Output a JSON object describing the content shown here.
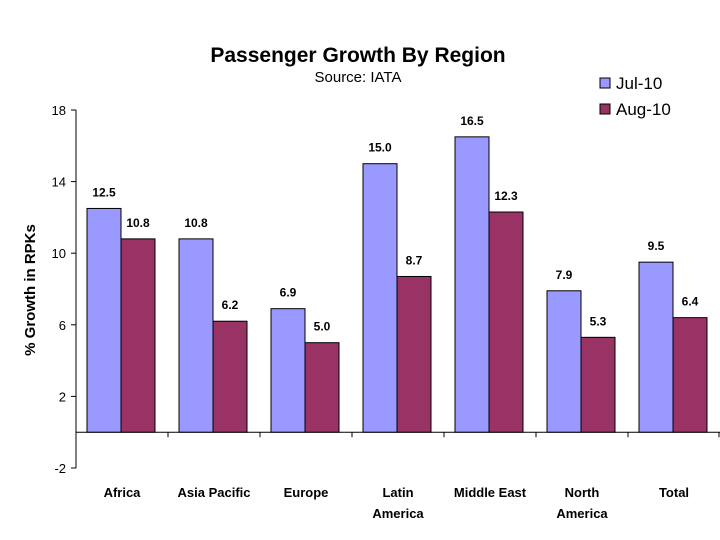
{
  "chart_data": {
    "type": "bar",
    "title": "Passenger Growth By Region",
    "subtitle": "Source: IATA",
    "ylabel": "% Growth in RPKs",
    "xlabel": "",
    "ylim": [
      -2,
      18
    ],
    "yticks": [
      "-2",
      "2",
      "6",
      "10",
      "14",
      "18"
    ],
    "legend_position": "top-right",
    "categories": [
      [
        "Africa"
      ],
      [
        "Asia Pacific"
      ],
      [
        "Europe"
      ],
      [
        "Latin",
        "America"
      ],
      [
        "Middle East"
      ],
      [
        "North",
        "America"
      ],
      [
        "Total"
      ]
    ],
    "series": [
      {
        "name": "Jul-10",
        "color": "#9999FF",
        "values": [
          12.5,
          10.8,
          6.9,
          15.0,
          16.5,
          7.9,
          9.5
        ],
        "labels": [
          "12.5",
          "10.8",
          "6.9",
          "15.0",
          "16.5",
          "7.9",
          "9.5"
        ]
      },
      {
        "name": "Aug-10",
        "color": "#993366",
        "values": [
          10.8,
          6.2,
          5.0,
          8.7,
          12.3,
          5.3,
          6.4
        ],
        "labels": [
          "10.8",
          "6.2",
          "5.0",
          "8.7",
          "12.3",
          "5.3",
          "6.4"
        ]
      }
    ]
  }
}
